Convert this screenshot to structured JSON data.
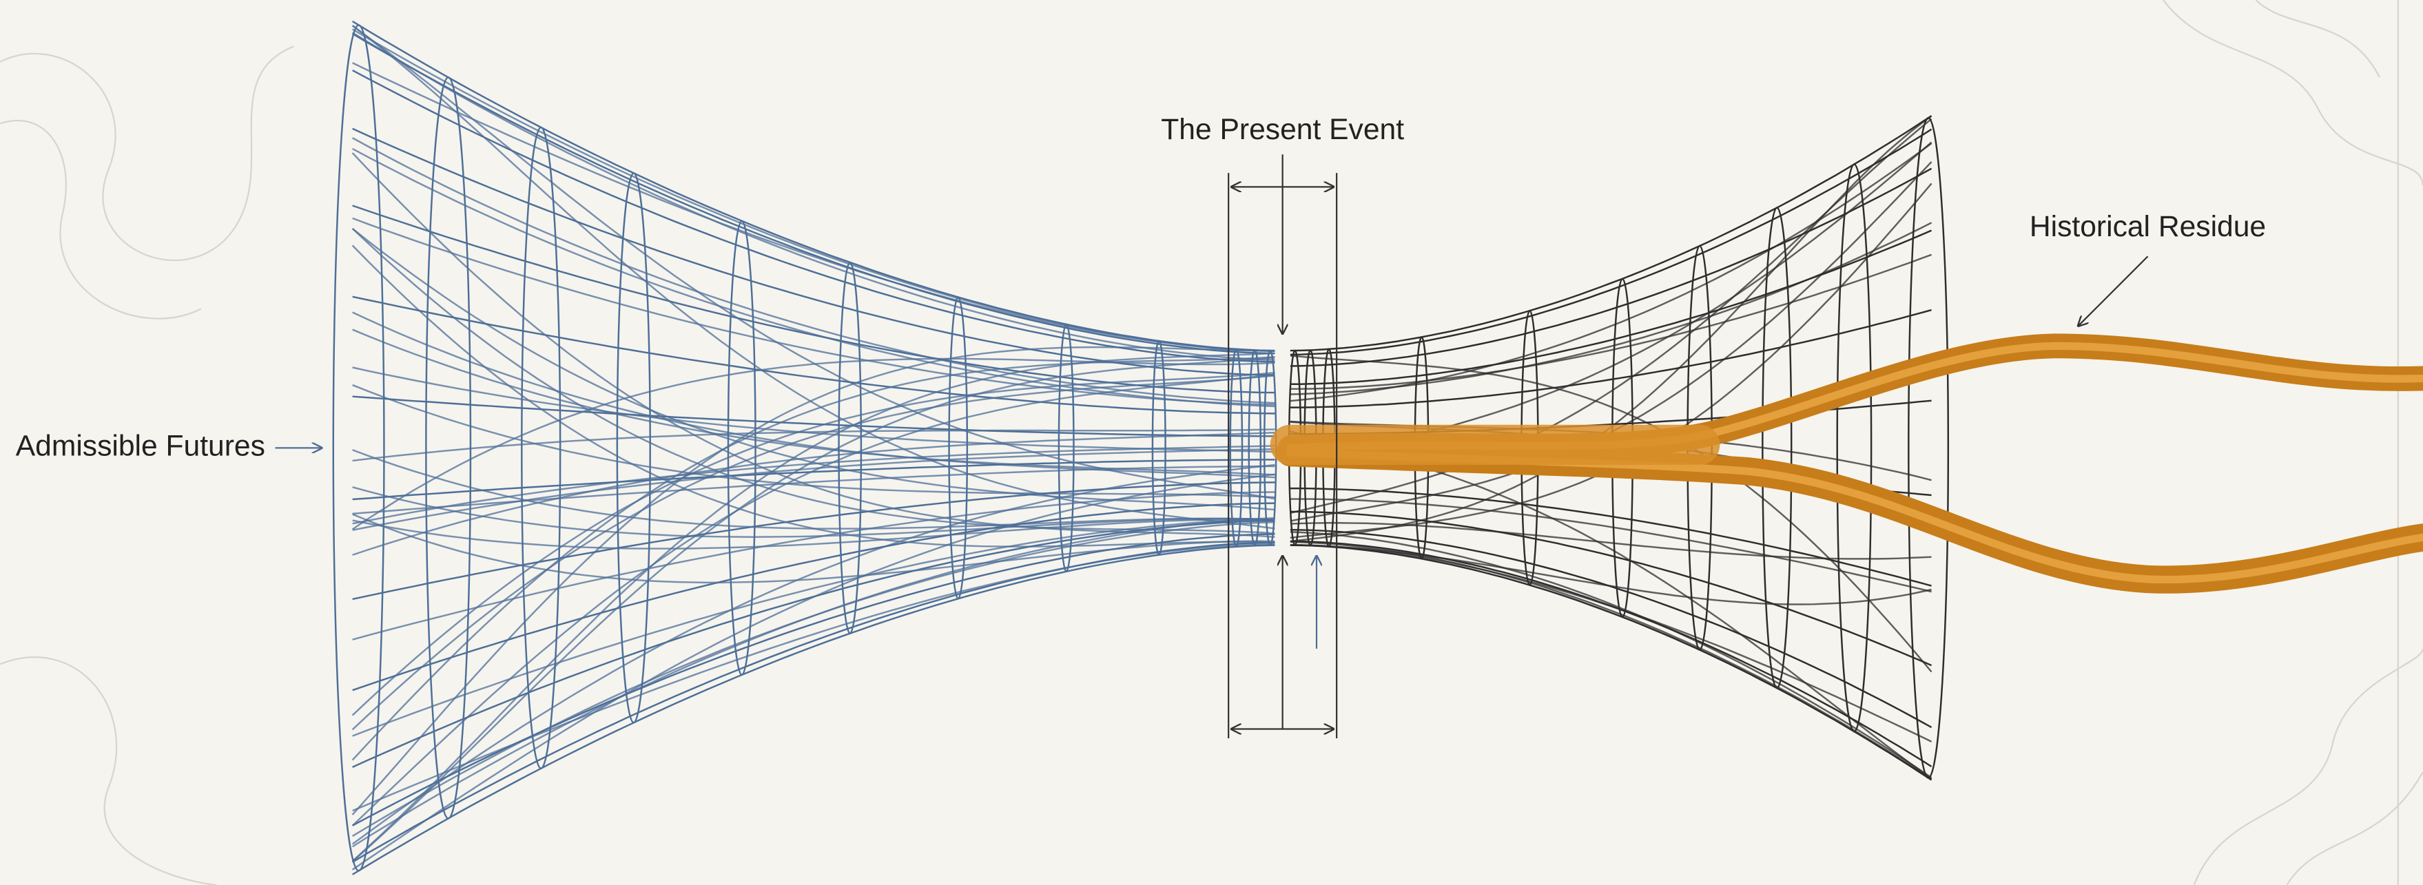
{
  "labels": {
    "present_event": "The Present Event",
    "historical_residue": "Historical Residue",
    "admissible_futures": "Admissible Futures"
  }
}
